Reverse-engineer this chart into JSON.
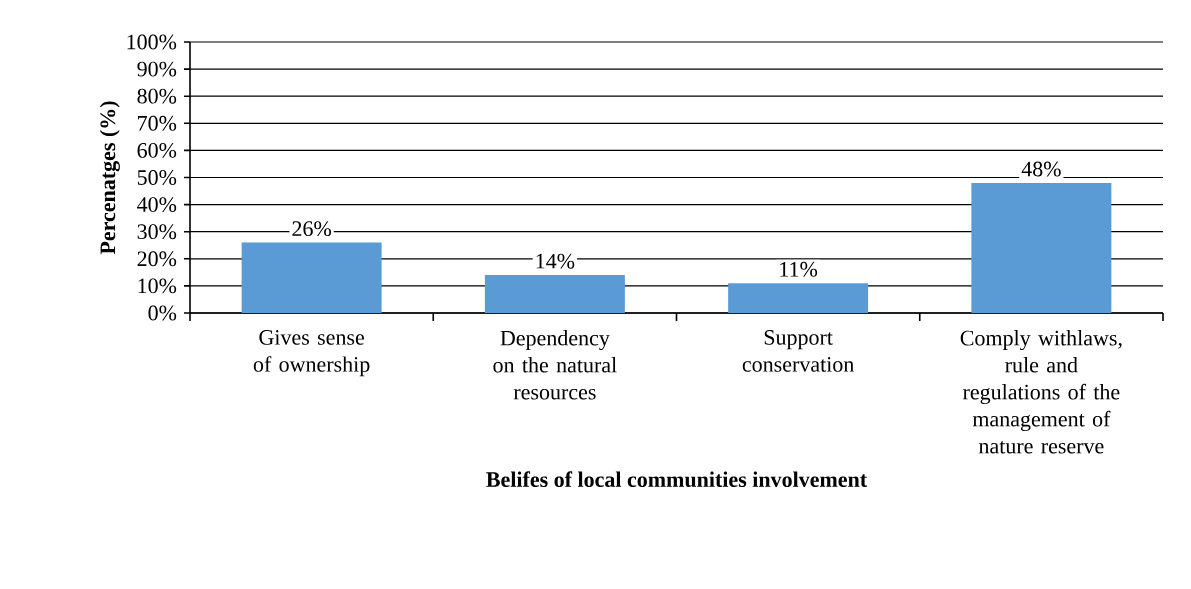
{
  "chart_data": {
    "type": "bar",
    "xlabel": "Belifes of local communities involvement",
    "ylabel": "Percenatges (%)",
    "categories": [
      "Gives sense of ownership",
      "Dependency on the natural resources",
      "Support conservation",
      "Comply withlaws, rule and regulations of the management of nature reserve"
    ],
    "values": [
      26,
      14,
      11,
      48
    ],
    "value_labels": [
      "26%",
      "14%",
      "11%",
      "48%"
    ],
    "color": "#5b9bd5",
    "ylim": [
      0,
      100
    ],
    "yticks": [
      {
        "value": 0,
        "label": "0%"
      },
      {
        "value": 10,
        "label": "10%"
      },
      {
        "value": 20,
        "label": "20%"
      },
      {
        "value": 30,
        "label": "30%"
      },
      {
        "value": 40,
        "label": "40%"
      },
      {
        "value": 50,
        "label": "50%"
      },
      {
        "value": 60,
        "label": "60%"
      },
      {
        "value": 70,
        "label": "70%"
      },
      {
        "value": 80,
        "label": "80%"
      },
      {
        "value": 90,
        "label": "90%"
      },
      {
        "value": 100,
        "label": "100%"
      }
    ],
    "grid": "y"
  }
}
